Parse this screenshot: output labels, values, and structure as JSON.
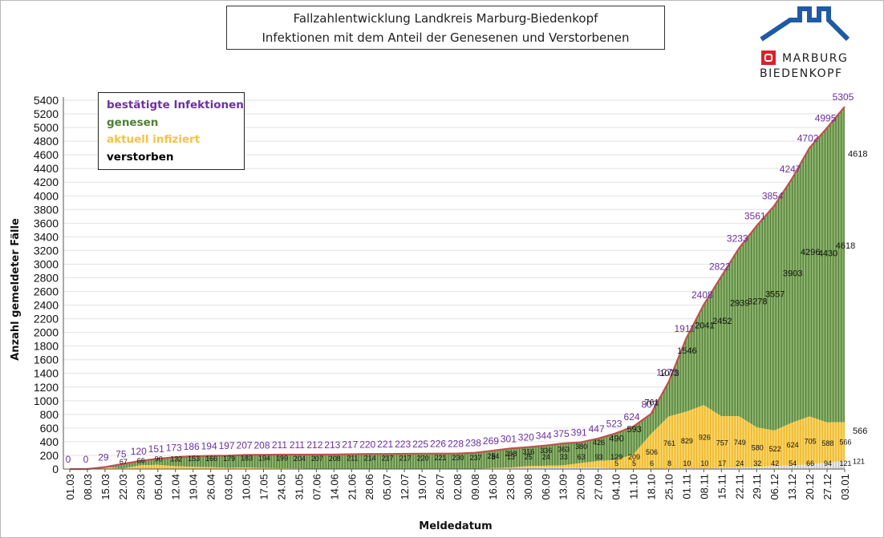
{
  "title": {
    "line1": "Fallzahlentwicklung Landkreis Marburg-Biedenkopf",
    "line2": "Infektionen mit dem Anteil der Genesenen und Verstorbenen"
  },
  "logo": {
    "line1": "MARBURG",
    "line2": "BIEDENKOPF",
    "icon": "marburg-biedenkopf-logo"
  },
  "legend": [
    {
      "label": "bestätigte Infektionen",
      "color": "#7030a0"
    },
    {
      "label": "genesen",
      "color": "#4f7f31"
    },
    {
      "label": "aktuell infiziert",
      "color": "#f5c342"
    },
    {
      "label": "verstorben",
      "color": "#000000"
    }
  ],
  "colors": {
    "total_line": "#c0504d",
    "genesen": "#8fb571",
    "genesen_stripe": "#4e7a32",
    "aktuell": "#f7d56a",
    "aktuell_stripe": "#efb21c",
    "verstorben": "#d9d9d9",
    "total_label": "#6b2fa0"
  },
  "chart_data": {
    "type": "area",
    "title": "Fallzahlentwicklung Landkreis Marburg-Biedenkopf",
    "subtitle": "Infektionen mit dem Anteil der Genesenen und Verstorbenen",
    "xlabel": "Meldedatum",
    "ylabel": "Anzahl gemeldeter Fälle",
    "ylim": [
      0,
      5400
    ],
    "yticks": [
      0,
      200,
      400,
      600,
      800,
      1000,
      1200,
      1400,
      1600,
      1800,
      2000,
      2200,
      2400,
      2600,
      2800,
      3000,
      3200,
      3400,
      3600,
      3800,
      4000,
      4200,
      4400,
      4600,
      4800,
      5000,
      5200,
      5400
    ],
    "x_ticks": [
      "01.03",
      "08.03",
      "15.03",
      "22.03",
      "29.03",
      "05.04",
      "12.04",
      "19.04",
      "26.04",
      "03.05",
      "10.05",
      "17.05",
      "24.05",
      "31.05",
      "07.06",
      "14.06",
      "21.06",
      "28.06",
      "05.07",
      "12.07",
      "19.07",
      "26.07",
      "02.08",
      "09.08",
      "16.08",
      "23.08",
      "30.08",
      "06.09",
      "13.09",
      "20.09",
      "27.09",
      "04.10",
      "11.10",
      "18.10",
      "25.10",
      "01.11",
      "08.11",
      "15.11",
      "22.11",
      "29.11",
      "06.12",
      "13.12",
      "20.12",
      "27.12",
      "03.01"
    ],
    "series": [
      {
        "name": "bestätigte Infektionen",
        "values": [
          0,
          0,
          29,
          75,
          120,
          151,
          173,
          186,
          194,
          197,
          207,
          208,
          211,
          211,
          212,
          213,
          217,
          220,
          221,
          223,
          225,
          226,
          228,
          238,
          269,
          301,
          320,
          344,
          375,
          391,
          447,
          523,
          624,
          807,
          1273,
          1911,
          2408,
          2822,
          3233,
          3561,
          3854,
          4247,
          4702,
          4995,
          5305
        ]
      },
      {
        "name": "genesen",
        "values": [
          0,
          0,
          0,
          67,
          66,
          90,
          132,
          153,
          166,
          179,
          183,
          194,
          199,
          204,
          207,
          208,
          211,
          214,
          217,
          217,
          220,
          221,
          230,
          237,
          254,
          298,
          316,
          336,
          363,
          380,
          426,
          490,
          593,
          761,
          1073,
          1546,
          2041,
          2452,
          2939,
          3278,
          3557,
          3903,
          4296,
          4430,
          4618
        ]
      },
      {
        "name": "aktuell infiziert",
        "values": [
          0,
          0,
          29,
          8,
          50,
          55,
          35,
          27,
          22,
          12,
          18,
          8,
          6,
          1,
          1,
          0,
          1,
          1,
          0,
          1,
          0,
          0,
          0,
          0,
          8,
          13,
          25,
          24,
          33,
          63,
          93,
          129,
          209,
          506,
          761,
          829,
          926,
          757,
          749,
          580,
          522,
          624,
          705,
          588,
          566
        ]
      },
      {
        "name": "verstorben",
        "values": [
          0,
          0,
          0,
          0,
          4,
          6,
          6,
          6,
          6,
          6,
          6,
          6,
          6,
          6,
          4,
          5,
          5,
          5,
          4,
          5,
          5,
          5,
          0,
          1,
          7,
          9,
          18,
          24,
          22,
          24,
          24,
          5,
          5,
          6,
          8,
          10,
          10,
          17,
          24,
          32,
          42,
          54,
          66,
          94,
          121
        ]
      }
    ],
    "end_labels": {
      "genesen": "4618",
      "aktuell": "566",
      "verstorben": "121"
    }
  }
}
